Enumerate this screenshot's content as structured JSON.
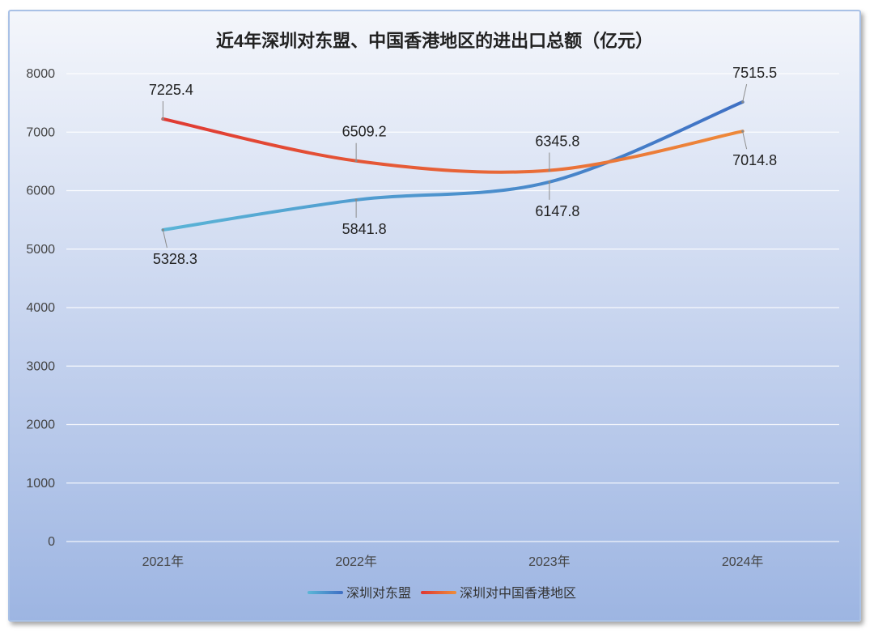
{
  "chart_data": {
    "type": "line",
    "title": "近4年深圳对东盟、中国香港地区的进出口总额（亿元）",
    "categories": [
      "2021年",
      "2022年",
      "2023年",
      "2024年"
    ],
    "ylim": [
      0,
      8000
    ],
    "yticks": [
      0,
      1000,
      2000,
      3000,
      4000,
      5000,
      6000,
      7000,
      8000
    ],
    "grid": true,
    "legend_position": "bottom",
    "series": [
      {
        "name": "深圳对东盟",
        "values": [
          5328.3,
          5841.8,
          6147.8,
          7515.5
        ],
        "labels": [
          "5328.3",
          "5841.8",
          "6147.8",
          "7515.5"
        ],
        "color_start": "#5ab4d6",
        "color_end": "#3f70c4"
      },
      {
        "name": "深圳对中国香港地区",
        "values": [
          7225.4,
          6509.2,
          6345.8,
          7014.8
        ],
        "labels": [
          "7225.4",
          "6509.2",
          "6345.8",
          "7014.8"
        ],
        "color_start": "#e03a33",
        "color_end": "#ee8a3a"
      }
    ]
  }
}
